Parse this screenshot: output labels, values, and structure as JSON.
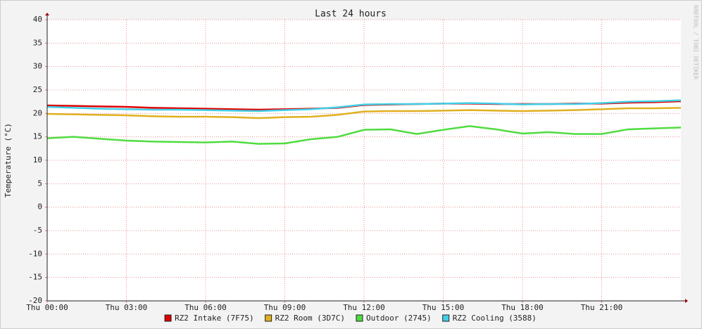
{
  "chart_data": {
    "type": "line",
    "title": "Last 24 hours",
    "y_label": "Temperature (°C)",
    "watermark": "RRDTOOL / TOBI OETIKER",
    "x": [
      0,
      1,
      2,
      3,
      4,
      5,
      6,
      7,
      8,
      9,
      10,
      11,
      12,
      13,
      14,
      15,
      16,
      17,
      18,
      19,
      20,
      21,
      22,
      23,
      24
    ],
    "xlim": [
      0,
      24
    ],
    "xticks": [
      {
        "value": 0,
        "label": "Thu 00:00"
      },
      {
        "value": 3,
        "label": "Thu 03:00"
      },
      {
        "value": 6,
        "label": "Thu 06:00"
      },
      {
        "value": 9,
        "label": "Thu 09:00"
      },
      {
        "value": 12,
        "label": "Thu 12:00"
      },
      {
        "value": 15,
        "label": "Thu 15:00"
      },
      {
        "value": 18,
        "label": "Thu 18:00"
      },
      {
        "value": 21,
        "label": "Thu 21:00"
      }
    ],
    "ylim": [
      -20,
      40
    ],
    "yticks": [
      -20,
      -15,
      -10,
      -5,
      0,
      5,
      10,
      15,
      20,
      25,
      30,
      35,
      40
    ],
    "grid": true,
    "series": [
      {
        "name": "RZ2 Intake (7F75)",
        "color": "#e00000",
        "values": [
          21.7,
          21.6,
          21.5,
          21.4,
          21.2,
          21.1,
          21.0,
          20.9,
          20.8,
          20.9,
          21.0,
          21.2,
          21.8,
          21.9,
          22.0,
          22.1,
          22.1,
          22.0,
          22.0,
          22.0,
          22.1,
          22.1,
          22.3,
          22.4,
          22.6
        ]
      },
      {
        "name": "RZ2 Room (3D7C)",
        "color": "#e0b020",
        "values": [
          19.9,
          19.8,
          19.7,
          19.6,
          19.4,
          19.3,
          19.3,
          19.2,
          19.0,
          19.2,
          19.3,
          19.7,
          20.4,
          20.5,
          20.5,
          20.6,
          20.7,
          20.6,
          20.5,
          20.6,
          20.7,
          20.9,
          21.1,
          21.1,
          21.2
        ]
      },
      {
        "name": "Outdoor (2745)",
        "color": "#50dc40",
        "values": [
          14.7,
          15.0,
          14.6,
          14.2,
          14.0,
          13.9,
          13.8,
          14.0,
          13.5,
          13.6,
          14.5,
          15.0,
          16.5,
          16.6,
          15.6,
          16.5,
          17.3,
          16.6,
          15.7,
          16.0,
          15.6,
          15.6,
          16.6,
          16.8,
          17.0
        ]
      },
      {
        "name": "RZ2 Cooling (3588)",
        "color": "#40d0e8",
        "values": [
          21.4,
          21.2,
          21.0,
          20.9,
          20.8,
          20.8,
          20.7,
          20.6,
          20.5,
          20.7,
          20.9,
          21.3,
          21.9,
          22.0,
          22.0,
          22.1,
          22.2,
          22.1,
          21.9,
          22.0,
          22.0,
          22.2,
          22.5,
          22.6,
          22.8
        ]
      }
    ]
  }
}
